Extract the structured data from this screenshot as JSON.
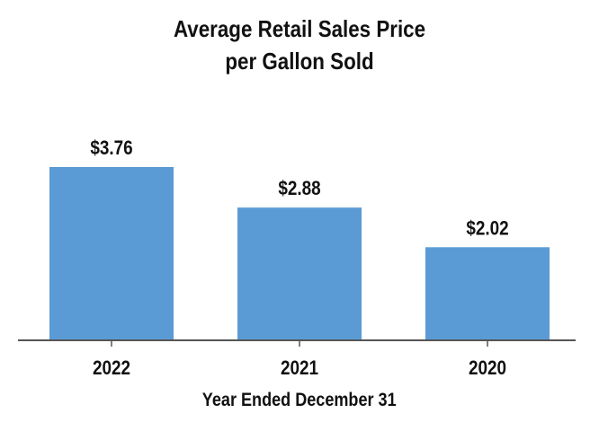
{
  "chart_data": {
    "type": "bar",
    "title": [
      "Average Retail Sales Price",
      "per Gallon Sold"
    ],
    "xlabel": "Year Ended December 31",
    "ylabel": "",
    "categories": [
      "2022",
      "2021",
      "2020"
    ],
    "values": [
      3.76,
      2.88,
      2.02
    ],
    "data_labels": [
      "$3.76",
      "$2.88",
      "$2.02"
    ],
    "ylim": [
      0,
      3.76
    ],
    "grid": false,
    "bar_color": "#5b9bd5",
    "axis_color": "#555555"
  }
}
